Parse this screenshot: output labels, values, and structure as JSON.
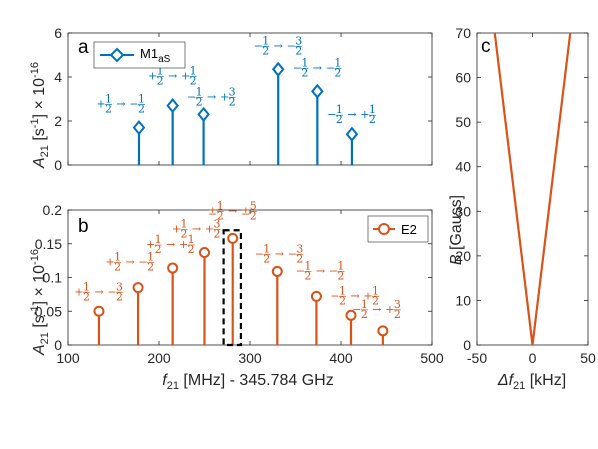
{
  "colors": {
    "blue": "#0072BD",
    "orange": "#D95319"
  },
  "chart_data": [
    {
      "id": "a",
      "type": "stem",
      "panel_label": "a",
      "ylabel": "A21 [s-1] × 10-16",
      "ylabel_parts": {
        "A": "A",
        "sub": "21",
        "bracket": " [s",
        "sup": "-1",
        "rest": "] × 10",
        "exp": "-16"
      },
      "xlim": [
        100,
        500
      ],
      "ylim": [
        0,
        6
      ],
      "yticks": [
        "0",
        "2",
        "4",
        "6"
      ],
      "legend": {
        "name": "M1",
        "sub": "aS",
        "marker": "diamond",
        "placement": "top-left"
      },
      "series": [
        {
          "name": "M1aS",
          "marker": "diamond",
          "x": [
            178,
            215,
            249,
            331,
            374,
            412
          ],
          "y": [
            1.7,
            2.7,
            2.3,
            4.35,
            3.35,
            1.4
          ],
          "labels": [
            "+1/2 → −1/2",
            "+1/2 → +1/2",
            "−1/2 → +3/2",
            "−1/2 → −3/2",
            "−1/2 → −1/2",
            "−1/2 → +1/2"
          ]
        }
      ]
    },
    {
      "id": "b",
      "type": "stem",
      "panel_label": "b",
      "xlabel": "f21 [MHz] - 345.784 GHz",
      "xlabel_parts": {
        "f": "f",
        "sub": "21",
        "rest": " [MHz] - 345.784 GHz"
      },
      "ylabel": "A21 [s-1] × 10-16",
      "ylabel_parts": {
        "A": "A",
        "sub": "21",
        "bracket": " [s",
        "sup": "-1",
        "rest": "] × 10",
        "exp": "-16"
      },
      "xlim": [
        100,
        500
      ],
      "ylim": [
        0,
        0.2
      ],
      "xticks": [
        "100",
        "200",
        "300",
        "400",
        "500"
      ],
      "yticks": [
        "0",
        "0.05",
        "0.1",
        "0.15",
        "0.2"
      ],
      "legend": {
        "name": "E2",
        "marker": "circle",
        "placement": "top-right"
      },
      "series": [
        {
          "name": "E2",
          "marker": "circle",
          "x": [
            134,
            177,
            215,
            250,
            281,
            330,
            373,
            411,
            446
          ],
          "y": [
            0.05,
            0.085,
            0.114,
            0.137,
            0.158,
            0.109,
            0.072,
            0.044,
            0.021
          ],
          "labels": [
            "+1/2 → −3/2",
            "+1/2 → −1/2",
            "+1/2 → +1/2",
            "+1/2 → +3/2",
            "±1/2 → ±5/2",
            "−1/2 → −3/2",
            "−1/2 → −1/2",
            "−1/2 → +1/2",
            "−1/2 → +3/2"
          ]
        }
      ],
      "highlight_box": {
        "x": [
          271,
          290
        ],
        "y": [
          0,
          0.17
        ]
      }
    },
    {
      "id": "c",
      "type": "line",
      "panel_label": "c",
      "xlabel": "Δf21 [kHz]",
      "xlabel_parts": {
        "f": "Δf",
        "sub": "21",
        "rest": " [kHz]"
      },
      "ylabel": "B [Gauss]",
      "ylabel_parts": {
        "B": "B",
        "rest": " [Gauss]"
      },
      "xlim": [
        -50,
        50
      ],
      "ylim": [
        0,
        70
      ],
      "xticks": [
        "-50",
        "0",
        "50"
      ],
      "yticks": [
        "0",
        "10",
        "20",
        "30",
        "40",
        "50",
        "60",
        "70"
      ],
      "series": [
        {
          "x": [
            0,
            -34
          ],
          "y": [
            0,
            70
          ]
        },
        {
          "x": [
            0,
            34
          ],
          "y": [
            0,
            70
          ]
        }
      ]
    }
  ]
}
